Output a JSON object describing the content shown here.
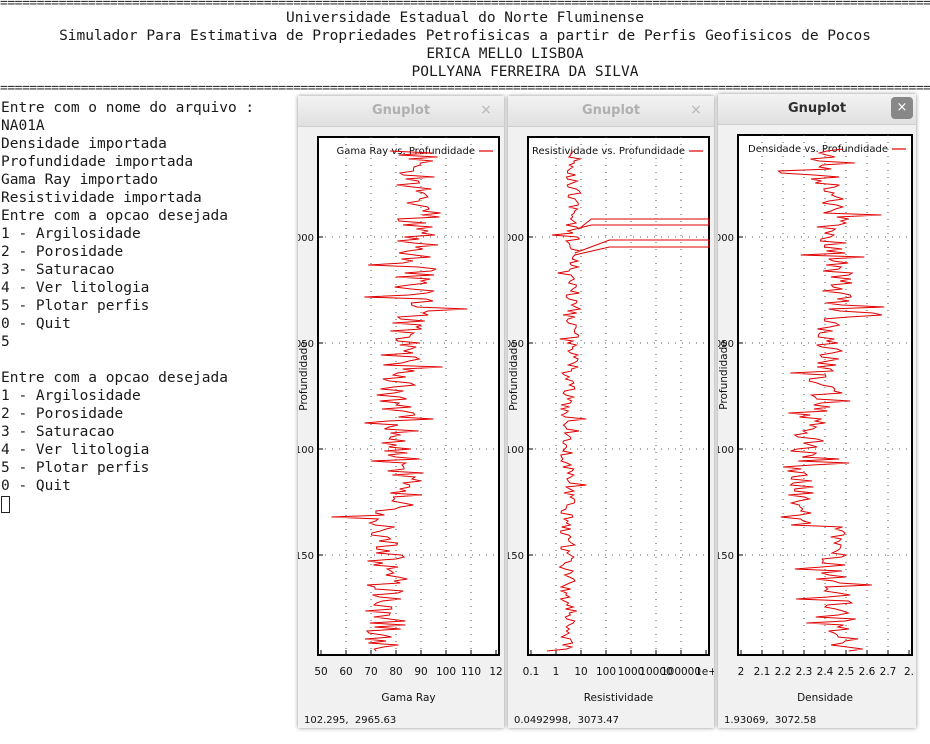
{
  "terminal": {
    "header": [
      "Universidade Estadual do Norte Fluminense",
      "Simulador Para Estimativa de Propriedades Petrofisicas a partir de Perfis Geofisicos de Pocos",
      "ERICA MELLO LISBOA",
      "POLLYANA FERREIRA DA SILVA"
    ],
    "lines": [
      "Entre com o nome do arquivo :",
      "NA01A",
      "Densidade importada",
      "Profundidade importada",
      "Gama Ray importado",
      "Resistividade importada",
      "Entre com a opcao desejada",
      "1 - Argilosidade",
      "2 - Porosidade",
      "3 - Saturacao",
      "4 - Ver litologia",
      "5 - Plotar perfis",
      "0 - Quit",
      "5",
      "",
      "Entre com a opcao desejada",
      "1 - Argilosidade",
      "2 - Porosidade",
      "3 - Saturacao",
      "4 - Ver litologia",
      "5 - Plotar perfis",
      "0 - Quit"
    ]
  },
  "windows": [
    {
      "title": "Gnuplot",
      "close_label": "×",
      "active": false,
      "coords": "102.295,  2965.63",
      "x_tick_labels": [
        "50",
        "60",
        "70",
        "80",
        "90",
        "100",
        "110",
        "12"
      ],
      "y_tick_labels": [
        "000",
        "050",
        "100",
        "150"
      ],
      "xlabel": "Gama Ray",
      "ylabel": "Profundidade",
      "legend": "Gama Ray vs. Profundidade",
      "line_color": "#e00000"
    },
    {
      "title": "Gnuplot",
      "close_label": "×",
      "active": false,
      "coords": "0.0492998,  3073.47",
      "x_tick_labels": [
        "0.1",
        "1",
        "10",
        "100",
        "1000",
        "10000",
        "100000",
        "1e+"
      ],
      "y_tick_labels": [
        "000",
        "050",
        "100",
        "150"
      ],
      "xlabel": "Resistividade",
      "ylabel": "Profundidade",
      "legend": "Resistividade vs. Profundidade",
      "line_color": "#e00000"
    },
    {
      "title": "Gnuplot",
      "close_label": "×",
      "active": true,
      "coords": "1.93069,  3072.58",
      "x_tick_labels": [
        "2",
        "2.1",
        "2.2",
        "2.3",
        "2.4",
        "2.5",
        "2.6",
        "2.7",
        "2."
      ],
      "y_tick_labels": [
        "000",
        "050",
        "100",
        "150"
      ],
      "xlabel": "Densidade",
      "ylabel": "Profundidade",
      "legend": "Densidade vs. Profundidade",
      "line_color": "#e00000"
    }
  ]
}
